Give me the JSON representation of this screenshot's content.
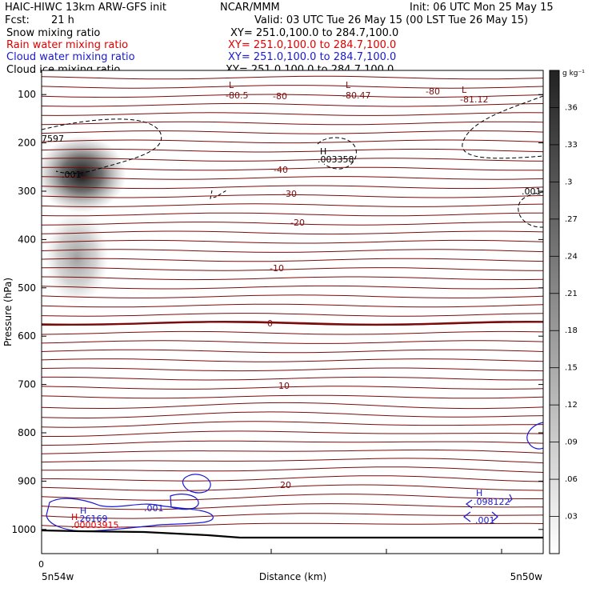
{
  "header": {
    "line1_left": "HAIC-HIWC 13km ARW-GFS init",
    "line1_center": "NCAR/MMM",
    "line1_right": "Init: 06 UTC Mon 25 May 15",
    "line2_left": "Fcst:",
    "line2_fcst": "21 h",
    "line2_right": "Valid: 03 UTC Tue 26 May 15 (00 LST Tue 26 May 15)"
  },
  "fields": [
    {
      "name": "Snow mixing ratio",
      "xy": "XY= 251.0,100.0 to 284.7,100.0",
      "color": "#000000"
    },
    {
      "name": "Rain water mixing ratio",
      "xy": "XY= 251.0,100.0 to 284.7,100.0",
      "color": "#e00000"
    },
    {
      "name": "Cloud water mixing ratio",
      "xy": "XY= 251.0,100.0 to 284.7,100.0",
      "color": "#1a1ad0"
    },
    {
      "name": "Cloud ice mixing ratio",
      "xy": "XY= 251.0,100.0 to 284.7,100.0",
      "color": "#000000"
    }
  ],
  "colors": {
    "temperature": "#7a0c0c",
    "rain": "#e00000",
    "cloud_water": "#1a1ad0",
    "ice": "#000000",
    "ground": "#000000"
  },
  "chart_data": {
    "type": "heatmap",
    "xlabel": "Distance (km)",
    "ylabel": "Pressure (hPa)",
    "yticks": [
      100,
      200,
      300,
      400,
      500,
      600,
      700,
      800,
      900,
      1000
    ],
    "ylim": [
      1050,
      50
    ],
    "x_tick_labels": {
      "zero": "0",
      "left": "5n54w",
      "right": "5n50w"
    },
    "colorbar": {
      "unit": "g kg⁻¹",
      "ticks": [
        ".03",
        ".06",
        ".09",
        ".12",
        ".15",
        ".18",
        ".21",
        ".24",
        ".27",
        ".3",
        ".33",
        ".36"
      ],
      "range": [
        0,
        0.39
      ]
    },
    "snow_maximum": {
      "pressure_hPa": 255,
      "value_g_per_kg": 0.39
    },
    "temperature_contours": {
      "labels": [
        {
          "text": "-80.5",
          "pressure": 115,
          "x_frac": 0.38
        },
        {
          "text": "-80",
          "pressure": 117,
          "x_frac": 0.47
        },
        {
          "text": "-80.47",
          "pressure": 115,
          "x_frac": 0.63
        },
        {
          "text": "-80",
          "pressure": 110,
          "x_frac": 0.78
        },
        {
          "text": "-81.12",
          "pressure": 125,
          "x_frac": 0.85
        },
        {
          "text": "-40",
          "pressure": 257,
          "x_frac": 0.5
        },
        {
          "text": "-30",
          "pressure": 305,
          "x_frac": 0.49
        },
        {
          "text": "-20",
          "pressure": 375,
          "x_frac": 0.5
        },
        {
          "text": "-10",
          "pressure": 488,
          "x_frac": 0.46
        },
        {
          "text": "0",
          "pressure": 602,
          "x_frac": 0.45
        },
        {
          "text": "10",
          "pressure": 715,
          "x_frac": 0.49
        },
        {
          "text": "20",
          "pressure": 895,
          "x_frac": 0.49
        }
      ],
      "lows": [
        {
          "text": "L",
          "pressure": 95,
          "x_frac": 0.38
        },
        {
          "text": "L",
          "pressure": 95,
          "x_frac": 0.61
        },
        {
          "text": "L",
          "pressure": 105,
          "x_frac": 0.84
        }
      ]
    },
    "ice_labels": [
      {
        "text": "7597",
        "pressure": 197,
        "x_frac": 0.01
      },
      {
        "text": ".001",
        "pressure": 262,
        "x_frac": 0.05
      },
      {
        "text": "H",
        "pressure": 215,
        "x_frac": 0.55
      },
      {
        "text": ".003358",
        "pressure": 233,
        "x_frac": 0.55
      },
      {
        "text": ".001",
        "pressure": 296,
        "x_frac": 0.96
      }
    ],
    "cloud_water_labels": [
      {
        "text": ".001",
        "pressure": 967,
        "x_frac": 0.22
      },
      {
        "text": "H",
        "pressure": 972,
        "x_frac": 0.08
      },
      {
        "text": ".26169",
        "pressure": 990,
        "x_frac": 0.1
      },
      {
        "text": "H",
        "pressure": 947,
        "x_frac": 0.87
      },
      {
        "text": ".098122",
        "pressure": 966,
        "x_frac": 0.87
      },
      {
        "text": ".001",
        "pressure": 1000,
        "x_frac": 0.88
      }
    ],
    "rain_labels": [
      {
        "text": "H",
        "pressure": 985,
        "x_frac": 0.07
      },
      {
        "text": ".00003915",
        "pressure": 1003,
        "x_frac": 0.1
      }
    ]
  }
}
